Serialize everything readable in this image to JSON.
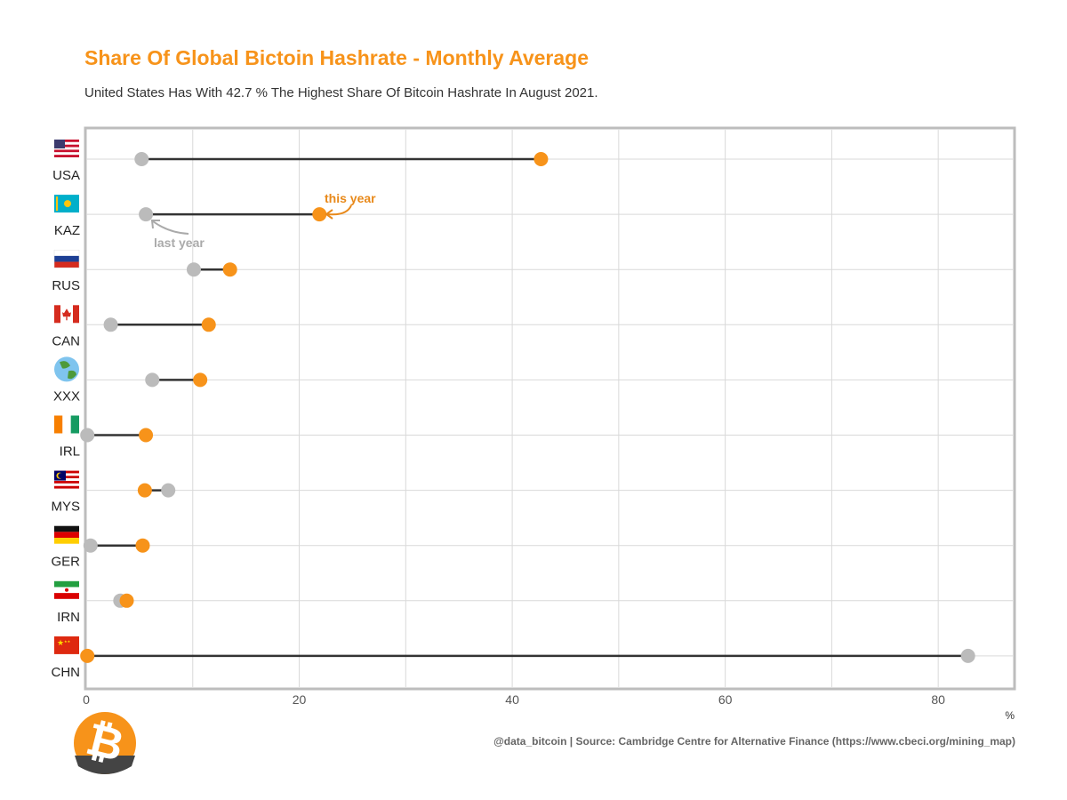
{
  "title": "Share Of Global Bictoin Hashrate - Monthly Average",
  "subtitle": "United States Has With 42.7 % The Highest Share Of Bitcoin Hashrate In August 2021.",
  "source": "@data_bitcoin | Source: Cambridge Centre for Alternative Finance (https://www.cbeci.org/mining_map)",
  "colors": {
    "this_year": "#F7931A",
    "last_year": "#BBBBBB",
    "segment": "#333333",
    "grid": "#D9D9D9",
    "frame": "#BDBDBD"
  },
  "annotations": {
    "this_year": "this year",
    "last_year": "last year"
  },
  "chart_data": {
    "type": "dumbbell",
    "x_unit": "%",
    "xlim": [
      0,
      87
    ],
    "x_ticks": [
      0,
      20,
      40,
      60,
      80
    ],
    "grid": true,
    "series": [
      {
        "name": "last year",
        "color": "#BBBBBB"
      },
      {
        "name": "this year",
        "color": "#F7931A"
      }
    ],
    "rows": [
      {
        "label": "USA",
        "flag": "us-flag-icon",
        "last_year": 5.2,
        "this_year": 42.7
      },
      {
        "label": "KAZ",
        "flag": "kz-flag-icon",
        "last_year": 5.6,
        "this_year": 21.9
      },
      {
        "label": "RUS",
        "flag": "ru-flag-icon",
        "last_year": 10.1,
        "this_year": 13.5
      },
      {
        "label": "CAN",
        "flag": "ca-flag-icon",
        "last_year": 2.3,
        "this_year": 11.5
      },
      {
        "label": "XXX",
        "flag": "globe-icon",
        "last_year": 6.2,
        "this_year": 10.7
      },
      {
        "label": "IRL",
        "flag": "ie-flag-icon",
        "last_year": 0.1,
        "this_year": 5.6
      },
      {
        "label": "MYS",
        "flag": "my-flag-icon",
        "last_year": 7.7,
        "this_year": 5.5
      },
      {
        "label": "GER",
        "flag": "de-flag-icon",
        "last_year": 0.4,
        "this_year": 5.3
      },
      {
        "label": "IRN",
        "flag": "ir-flag-icon",
        "last_year": 3.2,
        "this_year": 3.8
      },
      {
        "label": "CHN",
        "flag": "cn-flag-icon",
        "last_year": 82.8,
        "this_year": 0.1
      }
    ]
  }
}
